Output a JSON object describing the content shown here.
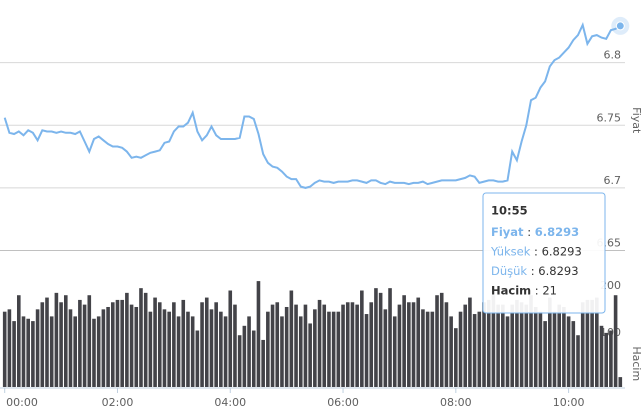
{
  "chart_data": [
    {
      "type": "line",
      "y_label": "Fiyat",
      "color": "#7cb5ec",
      "x": [
        0,
        5,
        10,
        15,
        20,
        25,
        30,
        35,
        40,
        45,
        50,
        55,
        60,
        65,
        70,
        75,
        80,
        85,
        90,
        95,
        100,
        105,
        110,
        115,
        120,
        125,
        130,
        135,
        140,
        145,
        150,
        155,
        160,
        165,
        170,
        175,
        180,
        185,
        190,
        195,
        200,
        205,
        210,
        215,
        220,
        225,
        230,
        235,
        240,
        245,
        250,
        255,
        260,
        265,
        270,
        275,
        280,
        285,
        290,
        295,
        300,
        305,
        310,
        315,
        320,
        325,
        330,
        335,
        340,
        345,
        350,
        355,
        360,
        365,
        370,
        375,
        380,
        385,
        390,
        395,
        400,
        405,
        410,
        415,
        420,
        425,
        430,
        435,
        440,
        445,
        450,
        455,
        460,
        465,
        470,
        475,
        480,
        485,
        490,
        495,
        500,
        505,
        510,
        515,
        520,
        525,
        530,
        535,
        540,
        545,
        550,
        555,
        560,
        565,
        570,
        575,
        580,
        585,
        590,
        595,
        600,
        605,
        610,
        615,
        620,
        625,
        630,
        635,
        640,
        645,
        650,
        655
      ],
      "values": [
        6.756,
        6.744,
        6.743,
        6.745,
        6.742,
        6.746,
        6.744,
        6.738,
        6.746,
        6.745,
        6.745,
        6.744,
        6.745,
        6.744,
        6.744,
        6.743,
        6.745,
        6.737,
        6.729,
        6.739,
        6.741,
        6.738,
        6.735,
        6.733,
        6.733,
        6.732,
        6.729,
        6.724,
        6.725,
        6.724,
        6.726,
        6.728,
        6.729,
        6.73,
        6.736,
        6.737,
        6.745,
        6.749,
        6.749,
        6.752,
        6.76,
        6.745,
        6.738,
        6.742,
        6.749,
        6.742,
        6.739,
        6.739,
        6.739,
        6.739,
        6.74,
        6.757,
        6.757,
        6.755,
        6.743,
        6.727,
        6.72,
        6.717,
        6.716,
        6.713,
        6.709,
        6.707,
        6.707,
        6.701,
        6.7,
        6.701,
        6.704,
        6.706,
        6.705,
        6.705,
        6.704,
        6.705,
        6.705,
        6.705,
        6.706,
        6.706,
        6.705,
        6.704,
        6.706,
        6.706,
        6.704,
        6.703,
        6.705,
        6.704,
        6.704,
        6.704,
        6.703,
        6.704,
        6.704,
        6.705,
        6.703,
        6.704,
        6.705,
        6.706,
        6.706,
        6.706,
        6.706,
        6.707,
        6.708,
        6.71,
        6.709,
        6.704,
        6.705,
        6.706,
        6.706,
        6.705,
        6.705,
        6.706,
        6.729,
        6.722,
        6.737,
        6.75,
        6.77,
        6.772,
        6.78,
        6.785,
        6.797,
        6.802,
        6.804,
        6.808,
        6.812,
        6.818,
        6.822,
        6.83,
        6.815,
        6.821,
        6.822,
        6.82,
        6.819,
        6.826,
        6.827,
        6.8293
      ],
      "xlim": [
        -5,
        660
      ],
      "ylim": [
        6.65,
        6.85
      ],
      "yticks": [
        6.65,
        6.7,
        6.75,
        6.8
      ],
      "grid": true
    },
    {
      "type": "bar",
      "y_label": "Hacim",
      "color": "#434348",
      "x": [
        0,
        5,
        10,
        15,
        20,
        25,
        30,
        35,
        40,
        45,
        50,
        55,
        60,
        65,
        70,
        75,
        80,
        85,
        90,
        95,
        100,
        105,
        110,
        115,
        120,
        125,
        130,
        135,
        140,
        145,
        150,
        155,
        160,
        165,
        170,
        175,
        180,
        185,
        190,
        195,
        200,
        205,
        210,
        215,
        220,
        225,
        230,
        235,
        240,
        245,
        250,
        255,
        260,
        265,
        270,
        275,
        280,
        285,
        290,
        295,
        300,
        305,
        310,
        315,
        320,
        325,
        330,
        335,
        340,
        345,
        350,
        355,
        360,
        365,
        370,
        375,
        380,
        385,
        390,
        395,
        400,
        405,
        410,
        415,
        420,
        425,
        430,
        435,
        440,
        445,
        450,
        455,
        460,
        465,
        470,
        475,
        480,
        485,
        490,
        495,
        500,
        505,
        510,
        515,
        520,
        525,
        530,
        535,
        540,
        545,
        550,
        555,
        560,
        565,
        570,
        575,
        580,
        585,
        590,
        595,
        600,
        605,
        610,
        615,
        620,
        625,
        630,
        635,
        640,
        645,
        650,
        655
      ],
      "values": [
        160,
        165,
        140,
        195,
        150,
        145,
        140,
        165,
        180,
        190,
        150,
        200,
        180,
        195,
        165,
        150,
        185,
        175,
        195,
        145,
        150,
        165,
        170,
        180,
        185,
        185,
        200,
        175,
        170,
        210,
        200,
        160,
        190,
        180,
        165,
        160,
        180,
        150,
        185,
        160,
        150,
        120,
        180,
        190,
        165,
        180,
        160,
        150,
        205,
        175,
        110,
        130,
        150,
        120,
        225,
        100,
        160,
        175,
        180,
        150,
        170,
        205,
        175,
        150,
        175,
        135,
        165,
        185,
        175,
        160,
        160,
        160,
        175,
        180,
        180,
        175,
        205,
        155,
        180,
        210,
        200,
        165,
        210,
        150,
        175,
        195,
        180,
        180,
        190,
        165,
        160,
        160,
        195,
        200,
        180,
        150,
        125,
        160,
        175,
        190,
        155,
        160,
        180,
        185,
        195,
        175,
        175,
        150,
        175,
        185,
        180,
        175,
        195,
        170,
        160,
        140,
        190,
        160,
        175,
        170,
        150,
        140,
        110,
        180,
        185,
        185,
        190,
        130,
        115,
        120,
        195,
        21
      ],
      "xlim": [
        -5,
        660
      ],
      "ylim": [
        0,
        290
      ],
      "yticks": [
        100,
        200
      ],
      "xticks": [
        {
          "value": 0,
          "label": "00:00"
        },
        {
          "value": 120,
          "label": "02:00"
        },
        {
          "value": 240,
          "label": "04:00"
        },
        {
          "value": 360,
          "label": "06:00"
        },
        {
          "value": 480,
          "label": "08:00"
        },
        {
          "value": 600,
          "label": "10:00"
        }
      ]
    }
  ],
  "tooltip": {
    "time": "10:55",
    "rows": [
      {
        "label": "Fiyat",
        "value": 6.8293
      },
      {
        "label": "Yüksek",
        "value": 6.8293
      },
      {
        "label": "Düşük",
        "value": 6.8293
      },
      {
        "label": "Hacim",
        "value": 21
      }
    ]
  }
}
